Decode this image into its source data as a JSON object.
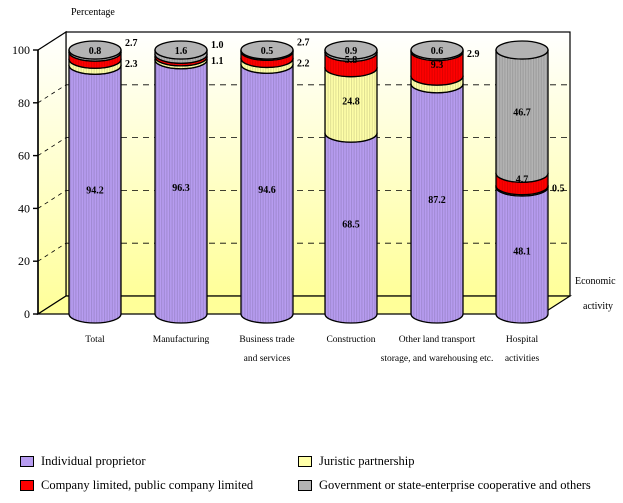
{
  "chart_data": {
    "type": "bar",
    "stacked": true,
    "y_axis_title": "Percentage",
    "x_axis_title": "Economic activity",
    "ylim": [
      0,
      100
    ],
    "yticks": [
      0,
      20,
      40,
      60,
      80,
      100
    ],
    "grid": "dashed horizontal",
    "legend_position": "bottom",
    "categories": [
      [
        "Total"
      ],
      [
        "Manufacturing"
      ],
      [
        "Business trade",
        "and services"
      ],
      [
        "Construction"
      ],
      [
        "Other land transport",
        "storage, and warehousing etc."
      ],
      [
        "Hospital",
        "activities"
      ]
    ],
    "series": [
      {
        "name": "Individual proprietor",
        "color": "#b79cf0",
        "values": [
          94.2,
          96.3,
          94.6,
          68.5,
          87.2,
          48.1
        ]
      },
      {
        "name": "Juristic partnership",
        "color": "#ffffa8",
        "values": [
          2.3,
          1.1,
          2.2,
          24.8,
          2.9,
          0.5
        ]
      },
      {
        "name": "Company limited, public company limited",
        "color": "#ff0000",
        "values": [
          2.7,
          1.0,
          2.7,
          5.8,
          9.3,
          4.7
        ]
      },
      {
        "name": "Government or state-enterprise cooperative and others",
        "color": "#b3b3b3",
        "values": [
          0.8,
          1.6,
          0.5,
          0.9,
          0.6,
          46.7
        ]
      }
    ],
    "data_labels": [
      [
        {
          "s": 0,
          "t": "94.2"
        },
        {
          "s": 3,
          "t": "0.8"
        },
        {
          "s": 2,
          "t": "2.7",
          "side": "right"
        },
        {
          "s": 1,
          "t": "2.3",
          "side": "right"
        }
      ],
      [
        {
          "s": 0,
          "t": "96.3"
        },
        {
          "s": 3,
          "t": "1.6"
        },
        {
          "s": 2,
          "t": "1.0",
          "side": "right"
        },
        {
          "s": 1,
          "t": "1.1",
          "side": "right"
        }
      ],
      [
        {
          "s": 0,
          "t": "94.6"
        },
        {
          "s": 3,
          "t": "0.5"
        },
        {
          "s": 2,
          "t": "2.7",
          "side": "right"
        },
        {
          "s": 1,
          "t": "2.2",
          "side": "right"
        }
      ],
      [
        {
          "s": 0,
          "t": "68.5"
        },
        {
          "s": 1,
          "t": "24.8"
        },
        {
          "s": 2,
          "t": "5.8"
        },
        {
          "s": 3,
          "t": "0.9"
        }
      ],
      [
        {
          "s": 0,
          "t": "87.2"
        },
        {
          "s": 1,
          "t": "2.9",
          "side": "right"
        },
        {
          "s": 2,
          "t": "9.3"
        },
        {
          "s": 3,
          "t": "0.6"
        }
      ],
      [
        {
          "s": 0,
          "t": "48.1"
        },
        {
          "s": 1,
          "t": "0.5",
          "side": "right"
        },
        {
          "s": 2,
          "t": "4.7"
        },
        {
          "s": 3,
          "t": "46.7"
        }
      ]
    ]
  }
}
